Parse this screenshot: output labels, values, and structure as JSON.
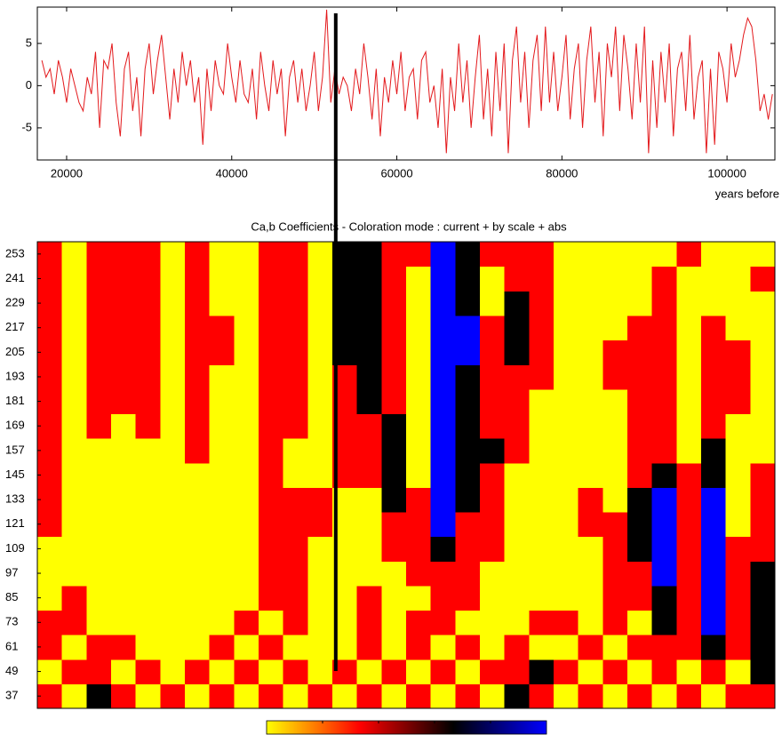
{
  "chart_data": [
    {
      "type": "line",
      "xlabel": "years before",
      "xlim": [
        16450,
        105800
      ],
      "ylim": [
        -8.8,
        9.3
      ],
      "xticks": [
        20000,
        40000,
        60000,
        80000,
        100000
      ],
      "yticks": [
        -5,
        0,
        5
      ],
      "vline_x": 52600,
      "x": [
        17000,
        17500,
        18000,
        18500,
        19000,
        19500,
        20000,
        20500,
        21000,
        21500,
        22000,
        22500,
        23000,
        23500,
        24000,
        24500,
        25000,
        25500,
        26000,
        26500,
        27000,
        27500,
        28000,
        28500,
        29000,
        29500,
        30000,
        30500,
        31000,
        31500,
        32000,
        32500,
        33000,
        33500,
        34000,
        34500,
        35000,
        35500,
        36000,
        36500,
        37000,
        37500,
        38000,
        38500,
        39000,
        39500,
        40000,
        40500,
        41000,
        41500,
        42000,
        42500,
        43000,
        43500,
        44000,
        44500,
        45000,
        45500,
        46000,
        46500,
        47000,
        47500,
        48000,
        48500,
        49000,
        49500,
        50000,
        50500,
        51000,
        51500,
        52000,
        52500,
        53000,
        53500,
        54000,
        54500,
        55000,
        55500,
        56000,
        56500,
        57000,
        57500,
        58000,
        58500,
        59000,
        59500,
        60000,
        60500,
        61000,
        61500,
        62000,
        62500,
        63000,
        63500,
        64000,
        64500,
        65000,
        65500,
        66000,
        66500,
        67000,
        67500,
        68000,
        68500,
        69000,
        69500,
        70000,
        70500,
        71000,
        71500,
        72000,
        72500,
        73000,
        73500,
        74000,
        74500,
        75000,
        75500,
        76000,
        76500,
        77000,
        77500,
        78000,
        78500,
        79000,
        79500,
        80000,
        80500,
        81000,
        81500,
        82000,
        82500,
        83000,
        83500,
        84000,
        84500,
        85000,
        85500,
        86000,
        86500,
        87000,
        87500,
        88000,
        88500,
        89000,
        89500,
        90000,
        90500,
        91000,
        91500,
        92000,
        92500,
        93000,
        93500,
        94000,
        94500,
        95000,
        95500,
        96000,
        96500,
        97000,
        97500,
        98000,
        98500,
        99000,
        99500,
        100000,
        100500,
        101000,
        101500,
        102000,
        102500,
        103000,
        103500,
        104000,
        104500,
        105000,
        105500
      ],
      "series": [
        {
          "color": "#e3191c",
          "values": [
            3,
            1,
            2,
            -1,
            3,
            1,
            -2,
            2,
            0,
            -2,
            -3,
            1,
            -1,
            4,
            -5,
            3,
            2,
            5,
            -2,
            -6,
            2,
            4,
            -3,
            1,
            -6,
            2,
            5,
            -1,
            3,
            6,
            1,
            -4,
            2,
            -2,
            4,
            0,
            3,
            -2,
            1,
            -7,
            2,
            -3,
            3,
            0,
            -1,
            5,
            1,
            -2,
            3,
            -1,
            -2,
            2,
            -4,
            4,
            0,
            -3,
            3,
            -1,
            2,
            -6,
            1,
            3,
            -2,
            2,
            -3,
            0,
            4,
            -3,
            1,
            9,
            -2,
            2,
            -1,
            1,
            0,
            -3,
            2,
            -1,
            5,
            1,
            -4,
            2,
            -6,
            1,
            -2,
            3,
            -1,
            4,
            -3,
            1,
            2,
            -4,
            3,
            4,
            -2,
            0,
            -5,
            2,
            -8,
            1,
            -3,
            5,
            -2,
            3,
            -5,
            1,
            6,
            -4,
            2,
            -6,
            4,
            -3,
            5,
            -8,
            3,
            7,
            -2,
            4,
            -5,
            3,
            6,
            -3,
            7,
            -2,
            4,
            -3,
            1,
            6,
            -4,
            2,
            5,
            -5,
            3,
            7,
            -2,
            4,
            -6,
            5,
            1,
            7,
            -3,
            6,
            2,
            -4,
            5,
            -2,
            7,
            -8,
            3,
            -5,
            4,
            -2,
            5,
            -6,
            2,
            4,
            -3,
            6,
            -4,
            1,
            3,
            -8,
            2,
            -7,
            4,
            2,
            -2,
            5,
            1,
            3,
            6,
            8,
            7,
            3,
            -3,
            -1,
            -4,
            -1
          ]
        }
      ]
    },
    {
      "type": "heatmap",
      "title": "Ca,b Coefficients - Coloration mode : current + by scale + abs",
      "xlim": [
        16450,
        105800
      ],
      "ylim": [
        31,
        259
      ],
      "yticks": [
        37,
        49,
        61,
        73,
        85,
        97,
        109,
        121,
        133,
        145,
        157,
        169,
        181,
        193,
        205,
        217,
        229,
        241,
        253
      ],
      "colormap": [
        "#ffff00",
        "#ff0000",
        "#000000",
        "#0000ff"
      ],
      "x": [
        17940,
        20918,
        23896,
        26874,
        29852,
        32830,
        35808,
        38786,
        41764,
        44742,
        47720,
        50698,
        53676,
        56654,
        59632,
        62610,
        65588,
        68566,
        71544,
        74522,
        77500,
        80478,
        83456,
        86434,
        89412,
        92390,
        95368,
        98346,
        101324,
        104302
      ],
      "y": [
        37,
        49,
        61,
        73,
        85,
        97,
        109,
        121,
        133,
        145,
        157,
        169,
        181,
        193,
        205,
        217,
        229,
        241,
        253
      ],
      "z": [
        [
          1,
          0,
          1,
          1,
          0,
          0,
          0,
          1,
          1,
          1,
          1,
          1,
          1,
          1,
          1,
          1,
          1,
          1,
          1
        ],
        [
          0,
          1,
          0,
          1,
          1,
          0,
          0,
          0,
          0,
          0,
          0,
          0,
          0,
          0,
          0,
          0,
          0,
          0,
          0
        ],
        [
          2,
          1,
          1,
          0,
          0,
          0,
          0,
          0,
          0,
          0,
          0,
          1,
          1,
          1,
          1,
          1,
          1,
          1,
          1
        ],
        [
          1,
          0,
          1,
          0,
          0,
          0,
          0,
          0,
          0,
          0,
          0,
          0,
          1,
          1,
          1,
          1,
          1,
          1,
          1
        ],
        [
          0,
          1,
          0,
          0,
          0,
          0,
          0,
          0,
          0,
          0,
          0,
          1,
          1,
          1,
          1,
          1,
          1,
          1,
          1
        ],
        [
          1,
          0,
          0,
          0,
          0,
          0,
          0,
          0,
          0,
          0,
          0,
          0,
          0,
          0,
          0,
          0,
          0,
          0,
          0
        ],
        [
          0,
          1,
          0,
          0,
          0,
          0,
          0,
          0,
          0,
          0,
          1,
          1,
          1,
          1,
          1,
          1,
          1,
          1,
          1
        ],
        [
          1,
          0,
          1,
          0,
          0,
          0,
          0,
          0,
          0,
          0,
          0,
          0,
          0,
          0,
          1,
          1,
          0,
          0,
          0
        ],
        [
          0,
          1,
          0,
          1,
          0,
          0,
          0,
          0,
          0,
          0,
          0,
          0,
          0,
          0,
          0,
          0,
          0,
          0,
          0
        ],
        [
          1,
          0,
          1,
          0,
          1,
          1,
          1,
          1,
          1,
          1,
          1,
          1,
          1,
          1,
          1,
          1,
          1,
          1,
          1
        ],
        [
          0,
          1,
          0,
          1,
          1,
          1,
          1,
          1,
          1,
          0,
          0,
          1,
          1,
          1,
          1,
          1,
          1,
          1,
          1
        ],
        [
          1,
          0,
          0,
          0,
          0,
          0,
          0,
          1,
          1,
          0,
          0,
          0,
          0,
          0,
          0,
          0,
          0,
          0,
          0
        ],
        [
          0,
          1,
          0,
          0,
          0,
          0,
          0,
          0,
          0,
          1,
          1,
          1,
          1,
          1,
          2,
          2,
          2,
          2,
          2
        ],
        [
          1,
          0,
          1,
          1,
          1,
          0,
          0,
          0,
          0,
          1,
          1,
          1,
          2,
          2,
          2,
          2,
          2,
          2,
          2
        ],
        [
          0,
          1,
          0,
          0,
          0,
          0,
          1,
          1,
          2,
          2,
          2,
          2,
          1,
          1,
          1,
          1,
          1,
          1,
          1
        ],
        [
          1,
          0,
          1,
          1,
          0,
          1,
          1,
          1,
          1,
          0,
          0,
          0,
          0,
          0,
          0,
          0,
          0,
          0,
          1
        ],
        [
          0,
          1,
          0,
          1,
          1,
          1,
          2,
          3,
          3,
          3,
          3,
          3,
          3,
          3,
          3,
          3,
          3,
          3,
          3
        ],
        [
          1,
          0,
          1,
          0,
          1,
          1,
          1,
          1,
          2,
          2,
          2,
          2,
          2,
          2,
          3,
          3,
          2,
          2,
          2
        ],
        [
          0,
          1,
          0,
          0,
          0,
          0,
          1,
          1,
          1,
          1,
          2,
          1,
          1,
          1,
          1,
          1,
          0,
          0,
          1
        ],
        [
          2,
          1,
          1,
          0,
          0,
          0,
          0,
          0,
          0,
          0,
          1,
          1,
          1,
          1,
          2,
          2,
          2,
          1,
          1
        ],
        [
          1,
          2,
          0,
          1,
          0,
          0,
          0,
          0,
          0,
          0,
          0,
          0,
          0,
          1,
          1,
          1,
          1,
          1,
          1
        ],
        [
          0,
          1,
          0,
          1,
          0,
          0,
          0,
          0,
          0,
          0,
          0,
          0,
          0,
          0,
          0,
          0,
          0,
          0,
          0
        ],
        [
          1,
          0,
          1,
          0,
          0,
          0,
          0,
          1,
          1,
          0,
          0,
          0,
          0,
          0,
          0,
          0,
          0,
          0,
          0
        ],
        [
          0,
          1,
          0,
          1,
          1,
          1,
          1,
          1,
          0,
          0,
          0,
          0,
          0,
          1,
          1,
          0,
          0,
          0,
          0
        ],
        [
          1,
          0,
          1,
          0,
          1,
          1,
          2,
          2,
          2,
          1,
          1,
          1,
          1,
          1,
          1,
          1,
          0,
          0,
          0
        ],
        [
          0,
          1,
          1,
          2,
          2,
          3,
          3,
          3,
          3,
          2,
          1,
          1,
          1,
          1,
          1,
          1,
          1,
          1,
          0
        ],
        [
          1,
          0,
          1,
          1,
          1,
          1,
          1,
          1,
          1,
          1,
          0,
          0,
          0,
          0,
          0,
          0,
          0,
          0,
          1
        ],
        [
          0,
          1,
          2,
          3,
          3,
          3,
          3,
          3,
          3,
          2,
          2,
          1,
          1,
          1,
          1,
          1,
          0,
          0,
          0
        ],
        [
          1,
          0,
          1,
          1,
          1,
          1,
          1,
          0,
          0,
          0,
          0,
          0,
          1,
          1,
          1,
          0,
          0,
          0,
          0
        ],
        [
          1,
          2,
          2,
          2,
          2,
          2,
          1,
          1,
          1,
          1,
          0,
          0,
          0,
          0,
          0,
          0,
          0,
          1,
          0
        ]
      ]
    }
  ]
}
